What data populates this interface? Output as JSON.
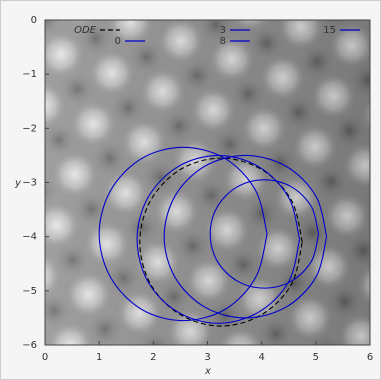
{
  "chart_data": {
    "type": "line",
    "x_label": "x",
    "y_label": "y",
    "xlim": [
      0,
      6
    ],
    "ylim": [
      -6,
      0
    ],
    "xticks": [
      0,
      1,
      2,
      3,
      4,
      5,
      6
    ],
    "yticks": [
      0,
      {
        "value": -1,
        "label": "−1"
      },
      {
        "value": -2,
        "label": "−2"
      },
      {
        "value": -3,
        "label": "−3"
      },
      {
        "value": -4,
        "label": "−4"
      },
      {
        "value": -5,
        "label": "−5"
      },
      {
        "value": -6,
        "label": "−6"
      }
    ],
    "series": [
      {
        "name": "ODE",
        "color": "#000000",
        "dashed": true,
        "x": [
          4.75,
          4.55,
          4.0,
          3.25,
          2.5,
          1.95,
          1.75,
          1.95,
          2.5,
          3.25,
          4.0,
          4.55,
          4.75
        ],
        "values": [
          -4.1,
          -3.33,
          -2.76,
          -2.55,
          -2.76,
          -3.33,
          -4.1,
          -4.88,
          -5.44,
          -5.65,
          -5.44,
          -4.88,
          -4.1
        ]
      },
      {
        "name": "0",
        "color": "#0000cc",
        "x": [
          5.05,
          4.92,
          4.55,
          4.05,
          3.55,
          3.18,
          3.05,
          3.18,
          3.55,
          4.05,
          4.55,
          4.92,
          5.05
        ],
        "values": [
          -3.95,
          -3.45,
          -3.08,
          -2.95,
          -3.08,
          -3.45,
          -3.95,
          -4.45,
          -4.82,
          -4.95,
          -4.82,
          -4.45,
          -3.95
        ]
      },
      {
        "name": "3",
        "color": "#0000cc",
        "x": [
          5.2,
          5.0,
          4.45,
          3.7,
          2.95,
          2.4,
          2.2,
          2.4,
          2.95,
          3.7,
          4.45,
          5.0,
          5.2
        ],
        "values": [
          -4.0,
          -3.25,
          -2.7,
          -2.5,
          -2.7,
          -3.25,
          -4.0,
          -4.75,
          -5.3,
          -5.5,
          -5.3,
          -4.75,
          -4.0
        ]
      },
      {
        "name": "8",
        "color": "#0000cc",
        "x": [
          4.7,
          4.5,
          3.95,
          3.2,
          2.45,
          1.9,
          1.7,
          1.9,
          2.45,
          3.2,
          3.95,
          4.5,
          4.7
        ],
        "values": [
          -4.05,
          -3.28,
          -2.71,
          -2.5,
          -2.71,
          -3.28,
          -4.05,
          -4.83,
          -5.39,
          -5.6,
          -5.39,
          -4.83,
          -4.05
        ]
      },
      {
        "name": "15",
        "color": "#0000cc",
        "x": [
          4.1,
          3.89,
          3.33,
          2.55,
          1.78,
          1.21,
          1.0,
          1.21,
          1.78,
          2.55,
          3.33,
          3.89,
          4.1
        ],
        "values": [
          -3.95,
          -3.15,
          -2.56,
          -2.35,
          -2.56,
          -3.15,
          -3.95,
          -4.75,
          -5.34,
          -5.55,
          -5.34,
          -4.75,
          -3.95
        ]
      }
    ]
  }
}
